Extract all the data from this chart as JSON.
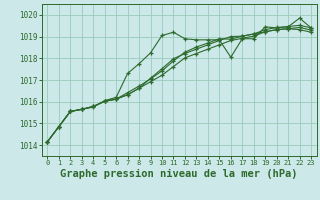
{
  "background_color": "#cce8e8",
  "grid_color": "#99ccbb",
  "line_color": "#2d6a2d",
  "title": "Graphe pression niveau de la mer (hPa)",
  "title_fontsize": 7.5,
  "xlim": [
    -0.5,
    23.5
  ],
  "ylim": [
    1013.5,
    1020.5
  ],
  "yticks": [
    1014,
    1015,
    1016,
    1017,
    1018,
    1019,
    1020
  ],
  "xticks": [
    0,
    1,
    2,
    3,
    4,
    5,
    6,
    7,
    8,
    9,
    10,
    11,
    12,
    13,
    14,
    15,
    16,
    17,
    18,
    19,
    20,
    21,
    22,
    23
  ],
  "series": [
    [
      1014.15,
      1014.85,
      1015.55,
      1015.65,
      1015.75,
      1016.05,
      1016.2,
      1017.3,
      1017.75,
      1018.25,
      1019.05,
      1019.2,
      1018.9,
      1018.85,
      1018.85,
      1018.85,
      1018.05,
      1018.9,
      1018.9,
      1019.45,
      1019.4,
      1019.45,
      1019.85,
      1019.4
    ],
    [
      1014.15,
      1014.85,
      1015.55,
      1015.65,
      1015.78,
      1016.02,
      1016.12,
      1016.42,
      1016.72,
      1017.05,
      1017.42,
      1017.88,
      1018.28,
      1018.52,
      1018.7,
      1018.9,
      1018.88,
      1019.02,
      1019.12,
      1019.32,
      1019.42,
      1019.46,
      1019.52,
      1019.4
    ],
    [
      1014.15,
      1014.85,
      1015.55,
      1015.65,
      1015.78,
      1016.02,
      1016.12,
      1016.32,
      1016.62,
      1017.08,
      1017.52,
      1017.98,
      1018.22,
      1018.42,
      1018.62,
      1018.82,
      1019.0,
      1019.02,
      1019.12,
      1019.22,
      1019.32,
      1019.36,
      1019.42,
      1019.3
    ],
    [
      1014.15,
      1014.85,
      1015.55,
      1015.65,
      1015.78,
      1016.02,
      1016.12,
      1016.32,
      1016.62,
      1016.92,
      1017.22,
      1017.62,
      1018.02,
      1018.22,
      1018.42,
      1018.62,
      1018.82,
      1018.92,
      1019.02,
      1019.22,
      1019.32,
      1019.36,
      1019.32,
      1019.2
    ]
  ]
}
